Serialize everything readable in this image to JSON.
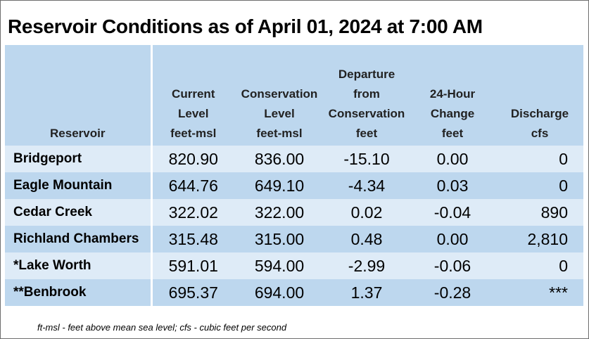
{
  "title": "Reservoir Conditions as of April 01, 2024 at 7:00 AM",
  "headers": {
    "reservoir": [
      "Reservoir"
    ],
    "current": [
      "Current",
      "Level",
      "feet-msl"
    ],
    "conservation": [
      "Conservation",
      "Level",
      "feet-msl"
    ],
    "departure": [
      "Departure",
      "from",
      "Conservation",
      "feet"
    ],
    "change": [
      "24-Hour",
      "Change",
      "feet"
    ],
    "discharge": [
      "Discharge",
      "cfs"
    ]
  },
  "rows": [
    {
      "name": "Bridgeport",
      "current": "820.90",
      "conservation": "836.00",
      "departure": "-15.10",
      "change": "0.00",
      "discharge": "0"
    },
    {
      "name": "Eagle Mountain",
      "current": "644.76",
      "conservation": "649.10",
      "departure": "-4.34",
      "change": "0.03",
      "discharge": "0"
    },
    {
      "name": "Cedar Creek",
      "current": "322.02",
      "conservation": "322.00",
      "departure": "0.02",
      "change": "-0.04",
      "discharge": "890"
    },
    {
      "name": "Richland Chambers",
      "current": "315.48",
      "conservation": "315.00",
      "departure": "0.48",
      "change": "0.00",
      "discharge": "2,810"
    },
    {
      "name": "*Lake Worth",
      "current": "591.01",
      "conservation": "594.00",
      "departure": "-2.99",
      "change": "-0.06",
      "discharge": "0"
    },
    {
      "name": "**Benbrook",
      "current": "695.37",
      "conservation": "694.00",
      "departure": "1.37",
      "change": "-0.28",
      "discharge": "***"
    }
  ],
  "footnote": "ft-msl - feet above mean sea level; cfs - cubic feet per second",
  "colors": {
    "header_bg": "#bdd7ee",
    "row_light": "#deebf7",
    "row_dark": "#bdd7ee",
    "divider": "#ffffff"
  }
}
